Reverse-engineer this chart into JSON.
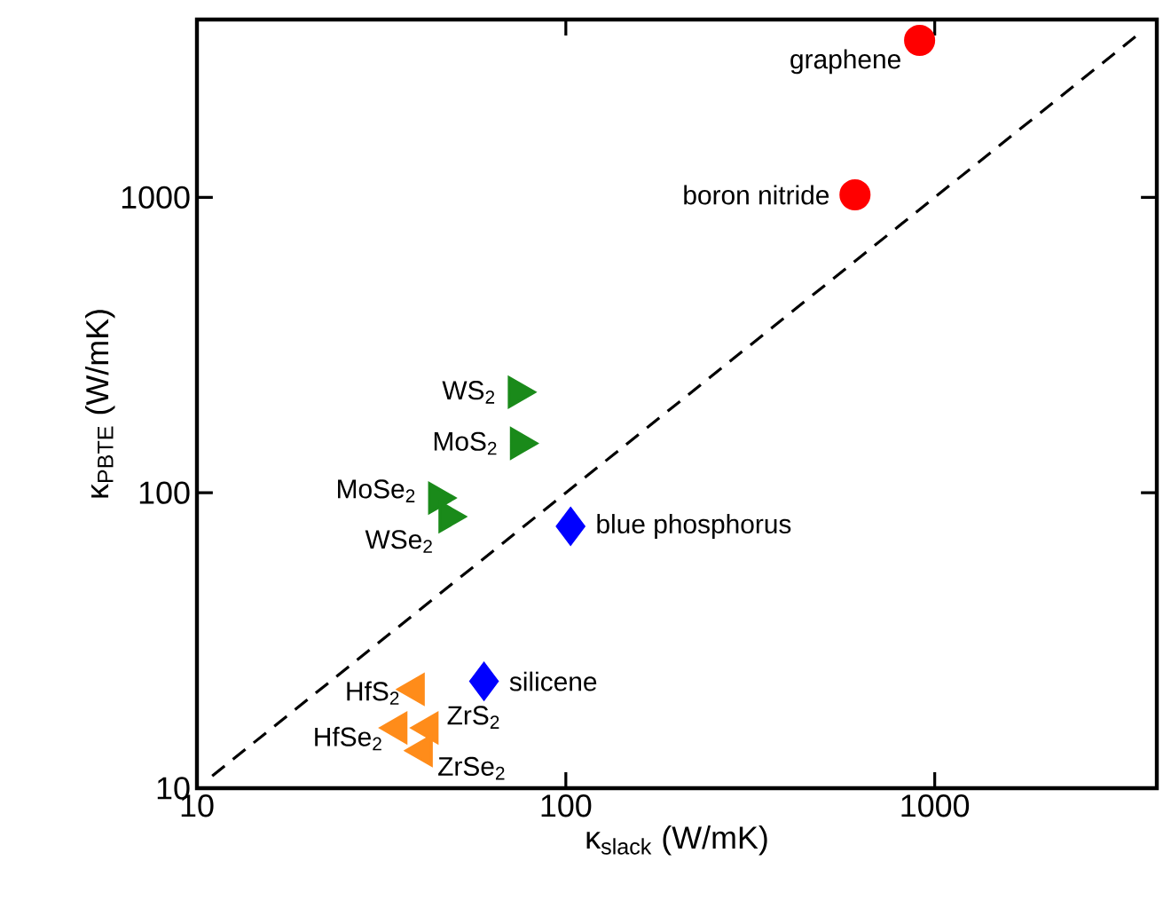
{
  "chart_data": {
    "type": "scatter",
    "xlabel": "κ$_{slack}$ (W/mK)",
    "ylabel": "κ$_{PBTE}$ (W/mK)",
    "log": "xy",
    "xlim": [
      10,
      4000
    ],
    "ylim": [
      10,
      4000
    ],
    "xticks": [
      10,
      100,
      1000
    ],
    "yticks": [
      10,
      100,
      1000
    ],
    "series": [
      {
        "color": "#ff0000",
        "marker": "circle",
        "x": [
          910,
          608
        ],
        "values": [
          3400,
          1020
        ]
      },
      {
        "color": "#1a8a1a",
        "marker": "triangle",
        "x": [
          74,
          75,
          45,
          48
        ],
        "values": [
          219,
          147,
          96,
          83
        ]
      },
      {
        "color": "#0000ff",
        "marker": "diamond",
        "x": [
          103,
          60
        ],
        "values": [
          77,
          23
        ]
      },
      {
        "color": "#ff8c1a",
        "marker": "triangle",
        "x": [
          39,
          35,
          42.5,
          41
        ],
        "values": [
          21.6,
          16,
          16,
          13.4
        ]
      },
      {
        "type": "line",
        "color": "#000000",
        "line_style": "dashed",
        "marker": "none",
        "x": [
          11,
          3500
        ],
        "values": [
          11,
          3500
        ]
      }
    ],
    "annotations": [
      {
        "text": "graphene",
        "x": 910,
        "y": 3400
      },
      {
        "text": "boron nitride",
        "x": 608,
        "y": 1020
      },
      {
        "text": "WS$_{2}$",
        "x": 74,
        "y": 219
      },
      {
        "text": "MoS$_{2}$",
        "x": 75,
        "y": 147
      },
      {
        "text": "MoSe$_{2}$",
        "x": 45,
        "y": 96
      },
      {
        "text": "WSe$_{2}$",
        "x": 48,
        "y": 83
      },
      {
        "text": "blue phosphorus",
        "x": 103,
        "y": 77
      },
      {
        "text": "silicene",
        "x": 60,
        "y": 23
      },
      {
        "text": "HfS$_{2}$",
        "x": 39,
        "y": 21.6
      },
      {
        "text": "HfSe$_{2}$",
        "x": 35,
        "y": 16
      },
      {
        "text": "ZrS$_{2}$",
        "x": 42.5,
        "y": 16
      },
      {
        "text": "ZrSe$_{2}$",
        "x": 41,
        "y": 13.4
      }
    ]
  }
}
